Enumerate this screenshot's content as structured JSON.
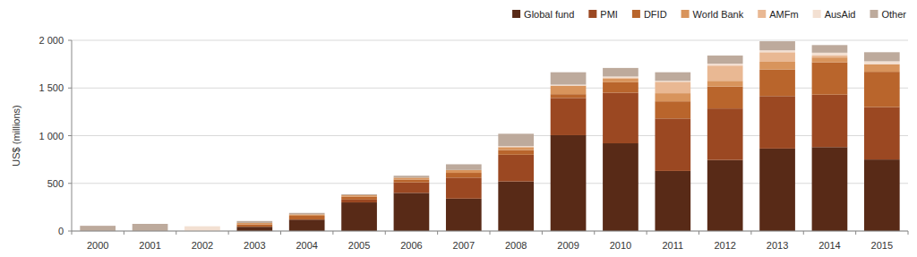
{
  "chart_data": {
    "type": "bar",
    "stacked": true,
    "grid": true,
    "legend": "top-right",
    "y_label": "US$ (millions)",
    "categories": [
      "2000",
      "2001",
      "2002",
      "2003",
      "2004",
      "2005",
      "2006",
      "2007",
      "2008",
      "2009",
      "2010",
      "2011",
      "2012",
      "2013",
      "2014",
      "2015"
    ],
    "ylim": [
      0,
      2000
    ],
    "yticks": [
      0,
      500,
      {
        "value": 1000,
        "label": "1 000"
      },
      {
        "value": 1500,
        "label": "1 500"
      },
      {
        "value": 2000,
        "label": "2 000"
      }
    ],
    "series": [
      {
        "name": "Global fund",
        "color": "#582a17",
        "values": [
          0,
          0,
          0,
          45,
          120,
          300,
          400,
          340,
          520,
          1005,
          920,
          630,
          745,
          865,
          880,
          750
        ]
      },
      {
        "name": "PMI",
        "color": "#9b4822",
        "values": [
          0,
          0,
          0,
          0,
          0,
          30,
          110,
          220,
          280,
          390,
          530,
          550,
          540,
          550,
          550,
          550
        ]
      },
      {
        "name": "DFID",
        "color": "#b9652c",
        "values": [
          0,
          0,
          0,
          25,
          40,
          30,
          30,
          50,
          50,
          40,
          110,
          180,
          230,
          280,
          340,
          370
        ]
      },
      {
        "name": "World Bank",
        "color": "#d8945c",
        "values": [
          0,
          0,
          0,
          15,
          15,
          15,
          20,
          30,
          30,
          90,
          40,
          85,
          60,
          80,
          50,
          80
        ]
      },
      {
        "name": "AMFm",
        "color": "#e9b893",
        "values": [
          0,
          0,
          0,
          0,
          0,
          0,
          0,
          0,
          0,
          0,
          10,
          120,
          160,
          100,
          20,
          0
        ]
      },
      {
        "name": "AusAid",
        "color": "#f3e0d2",
        "values": [
          0,
          0,
          50,
          0,
          0,
          0,
          0,
          0,
          10,
          10,
          10,
          10,
          20,
          20,
          30,
          30
        ]
      },
      {
        "name": "Other",
        "color": "#bdaa9c",
        "values": [
          55,
          75,
          0,
          20,
          15,
          10,
          20,
          60,
          130,
          130,
          90,
          90,
          85,
          95,
          80,
          95
        ]
      }
    ]
  }
}
